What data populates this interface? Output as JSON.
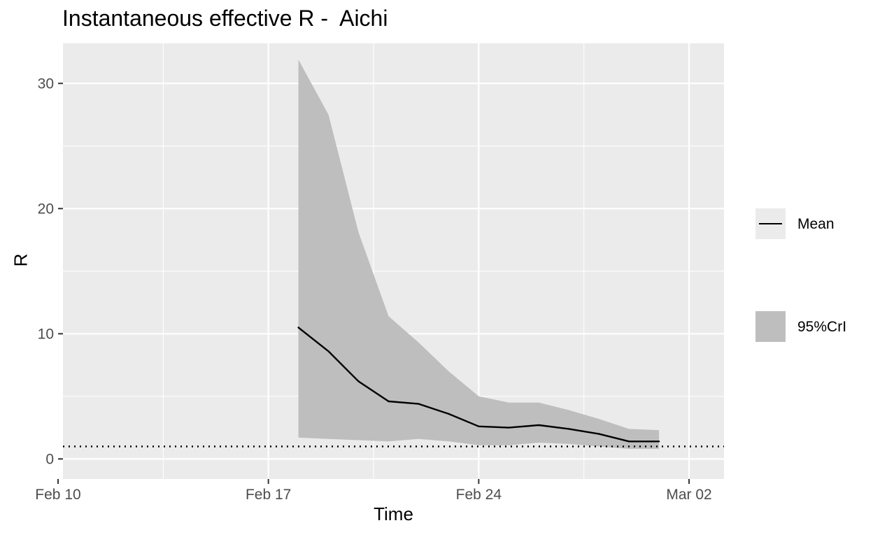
{
  "chart_data": {
    "type": "line",
    "title": "Instantaneous effective R -  Aichi",
    "xlabel": "Time",
    "ylabel": "R",
    "x_ticks": [
      {
        "date": "2020-02-10",
        "label": "Feb 10"
      },
      {
        "date": "2020-02-17",
        "label": "Feb 17"
      },
      {
        "date": "2020-02-24",
        "label": "Feb 24"
      },
      {
        "date": "2020-03-02",
        "label": "Mar 02"
      }
    ],
    "y_ticks": [
      0,
      10,
      20,
      30
    ],
    "xlim": [
      "2020-02-10",
      "2020-03-03"
    ],
    "ylim": [
      -1.6,
      33.2
    ],
    "grid": true,
    "background": "#ebebeb",
    "reference_line": {
      "y": 1,
      "style": "dotted"
    },
    "x": [
      "2020-02-18",
      "2020-02-19",
      "2020-02-20",
      "2020-02-21",
      "2020-02-22",
      "2020-02-23",
      "2020-02-24",
      "2020-02-25",
      "2020-02-26",
      "2020-02-27",
      "2020-02-28",
      "2020-02-29",
      "2020-03-01"
    ],
    "series": [
      {
        "name": "Mean",
        "kind": "line",
        "color": "#000000",
        "values": [
          10.5,
          8.6,
          6.2,
          4.6,
          4.4,
          3.6,
          2.6,
          2.5,
          2.7,
          2.4,
          2.0,
          1.4,
          1.4
        ]
      },
      {
        "name": "95%CrI",
        "kind": "band",
        "color": "#bebebe",
        "lower": [
          1.7,
          1.6,
          1.5,
          1.4,
          1.6,
          1.4,
          1.1,
          1.1,
          1.3,
          1.2,
          1.0,
          0.8,
          0.8
        ],
        "upper": [
          31.9,
          27.5,
          18.1,
          11.4,
          9.3,
          7.0,
          5.0,
          4.5,
          4.5,
          3.9,
          3.2,
          2.4,
          2.3
        ]
      }
    ],
    "legend_position": "right"
  }
}
